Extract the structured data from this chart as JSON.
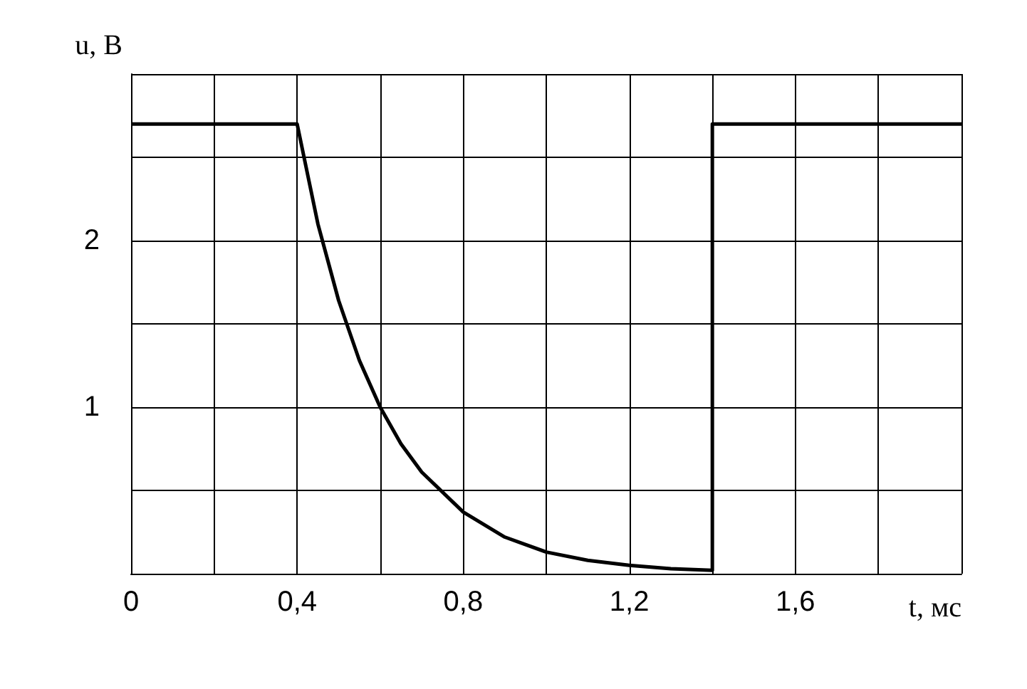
{
  "chart_data": {
    "type": "line",
    "xlabel": "t, мс",
    "ylabel": "u, В",
    "x": [
      0,
      0.4,
      0.45,
      0.5,
      0.55,
      0.6,
      0.65,
      0.7,
      0.8,
      0.9,
      1.0,
      1.1,
      1.2,
      1.3,
      1.4,
      1.4,
      2.0
    ],
    "series": [
      {
        "color": "#000000",
        "values": [
          2.7,
          2.7,
          2.1,
          1.64,
          1.28,
          1.0,
          0.78,
          0.61,
          0.37,
          0.22,
          0.13,
          0.08,
          0.05,
          0.03,
          0.02,
          2.7,
          2.7
        ]
      }
    ],
    "xlim": [
      0,
      2
    ],
    "ylim": [
      0,
      3
    ],
    "xticks": [
      {
        "value": 0,
        "label": "0"
      },
      {
        "value": 0.2,
        "label": null
      },
      {
        "value": 0.4,
        "label": "0,4"
      },
      {
        "value": 0.6,
        "label": null
      },
      {
        "value": 0.8,
        "label": "0,8"
      },
      {
        "value": 1.0,
        "label": null
      },
      {
        "value": 1.2,
        "label": "1,2"
      },
      {
        "value": 1.4,
        "label": null
      },
      {
        "value": 1.6,
        "label": "1,6"
      },
      {
        "value": 1.8,
        "label": null
      },
      {
        "value": 2.0,
        "label": null
      }
    ],
    "yticks": [
      {
        "value": 0,
        "label": null
      },
      {
        "value": 0.5,
        "label": null
      },
      {
        "value": 1,
        "label": "1"
      },
      {
        "value": 1.5,
        "label": null
      },
      {
        "value": 2,
        "label": "2"
      },
      {
        "value": 2.5,
        "label": null
      },
      {
        "value": 3,
        "label": null
      }
    ],
    "grid": true,
    "marker": "none",
    "line_style": "solid"
  }
}
